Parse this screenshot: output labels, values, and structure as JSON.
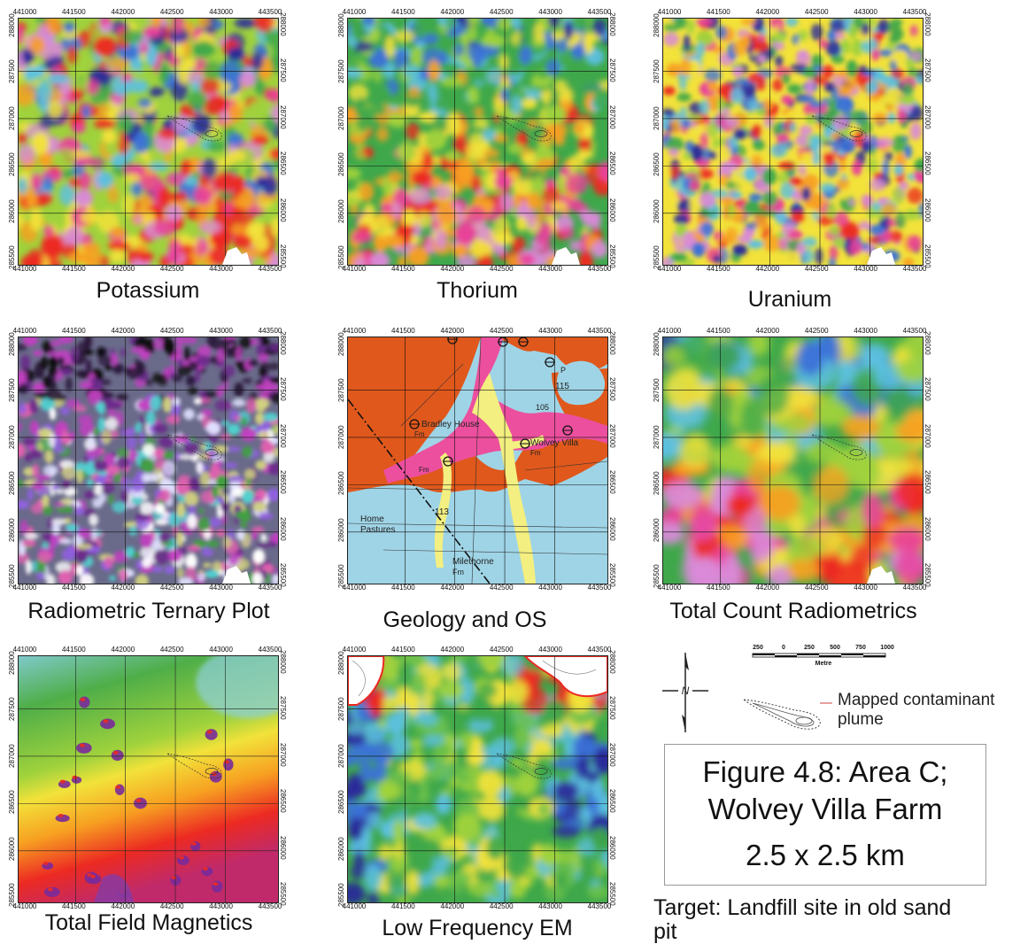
{
  "panels": [
    {
      "id": "potassium",
      "caption": "Potassium",
      "palette": "rainbow"
    },
    {
      "id": "thorium",
      "caption": "Thorium",
      "palette": "rainbow"
    },
    {
      "id": "uranium",
      "caption": "Uranium",
      "palette": "rainbow"
    },
    {
      "id": "ternary",
      "caption": "Radiometric Ternary Plot",
      "palette": "ternary"
    },
    {
      "id": "geology",
      "caption": "Geology and OS",
      "palette": "geology"
    },
    {
      "id": "total-count",
      "caption": "Total Count Radiometrics",
      "palette": "rainbow"
    },
    {
      "id": "magnetics",
      "caption": "Total Field Magnetics",
      "palette": "magnetics"
    },
    {
      "id": "em",
      "caption": "Low Frequency EM",
      "palette": "em"
    }
  ],
  "axis": {
    "x_ticks": [
      "441000",
      "441500",
      "442000",
      "442500",
      "443000",
      "443500"
    ],
    "y_ticks": [
      "288000",
      "287500",
      "287000",
      "286500",
      "286000",
      "285500"
    ]
  },
  "geology_labels": {
    "bradley": "Bradley House",
    "bradley_fm": "Fm",
    "wolvey": "Wolvey Villa",
    "wolvey_fm": "Fm",
    "home": "Home",
    "pastures": "Pastures",
    "milethorne": "Milethorne",
    "milethorne_fm": "Fm",
    "h115": "115",
    "h113": "113",
    "h105": "105",
    "fm_left": "Fm",
    "p": "P"
  },
  "legend": {
    "scale_ticks": [
      "250",
      "0",
      "250",
      "500",
      "750",
      "1000"
    ],
    "scale_unit": "Metre",
    "plume_label_1": "Mapped contaminant",
    "plume_label_2": "plume",
    "north_symbol": "N"
  },
  "figure": {
    "line1": "Figure 4.8: Area C;",
    "line2": "Wolvey  Villa Farm",
    "line3": "2.5 x 2.5 km"
  },
  "target": {
    "line1": "Target: Landfill site in old sand",
    "line2": "pit"
  },
  "colors": {
    "rainbow": [
      "#2a2a9a",
      "#3b72d8",
      "#5cc0e0",
      "#3ea84a",
      "#9fd23c",
      "#f2e23a",
      "#f7a021",
      "#ec2a22",
      "#e8409a",
      "#d98ad8"
    ],
    "geology_orange": "#e0581c",
    "geology_pink": "#ec4f9e",
    "geology_yellow": "#f3ef80",
    "geology_blue": "#9fd4e6"
  }
}
